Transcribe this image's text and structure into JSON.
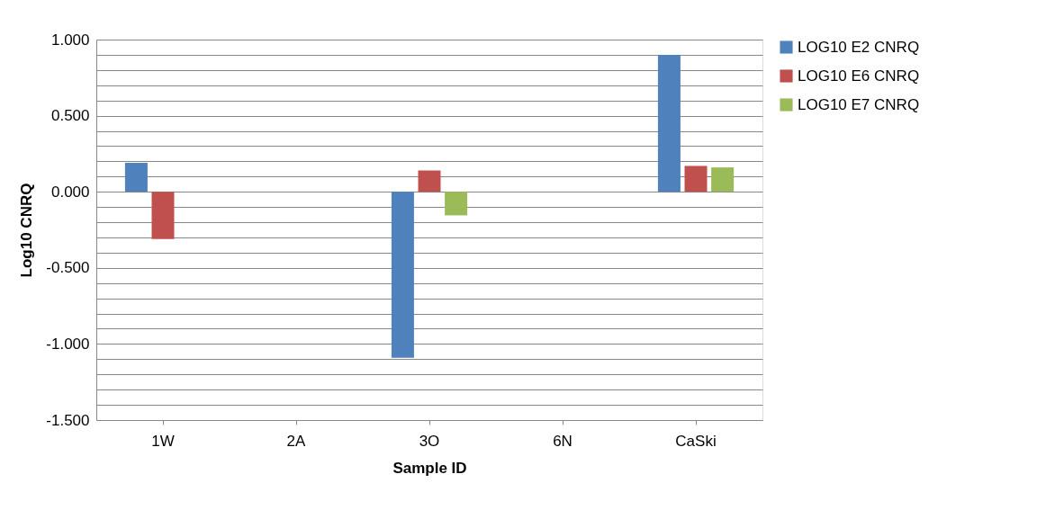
{
  "chart_data": {
    "type": "bar",
    "xlabel": "Sample ID",
    "ylabel": "Log10 CNRQ",
    "categories": [
      "1W",
      "2A",
      "3O",
      "6N",
      "CaSki"
    ],
    "series": [
      {
        "name": "LOG10 E2 CNRQ",
        "color": "#4f81bd",
        "values": [
          0.19,
          null,
          -1.09,
          null,
          0.9
        ]
      },
      {
        "name": "LOG10 E6 CNRQ",
        "color": "#c0504d",
        "values": [
          -0.31,
          null,
          0.14,
          null,
          0.17
        ]
      },
      {
        "name": "LOG10 E7 CNRQ",
        "color": "#9bbb59",
        "values": [
          null,
          null,
          -0.155,
          null,
          0.16
        ]
      }
    ],
    "ylim": [
      -1.5,
      1.0
    ],
    "yticks": [
      {
        "value": -1.5,
        "label": "-1.500"
      },
      {
        "value": -1.4,
        "label": null
      },
      {
        "value": -1.3,
        "label": null
      },
      {
        "value": -1.2,
        "label": null
      },
      {
        "value": -1.1,
        "label": null
      },
      {
        "value": -1.0,
        "label": "-1.000"
      },
      {
        "value": -0.9,
        "label": null
      },
      {
        "value": -0.8,
        "label": null
      },
      {
        "value": -0.7,
        "label": null
      },
      {
        "value": -0.6,
        "label": null
      },
      {
        "value": -0.5,
        "label": "-0.500"
      },
      {
        "value": -0.4,
        "label": null
      },
      {
        "value": -0.3,
        "label": null
      },
      {
        "value": -0.2,
        "label": null
      },
      {
        "value": -0.1,
        "label": null
      },
      {
        "value": 0.0,
        "label": "0.000"
      },
      {
        "value": 0.1,
        "label": null
      },
      {
        "value": 0.2,
        "label": null
      },
      {
        "value": 0.3,
        "label": null
      },
      {
        "value": 0.4,
        "label": null
      },
      {
        "value": 0.5,
        "label": "0.500"
      },
      {
        "value": 0.6,
        "label": null
      },
      {
        "value": 0.7,
        "label": null
      },
      {
        "value": 0.8,
        "label": null
      },
      {
        "value": 0.9,
        "label": null
      },
      {
        "value": 1.0,
        "label": "1.000"
      }
    ],
    "grid": "y",
    "legend": "right"
  }
}
